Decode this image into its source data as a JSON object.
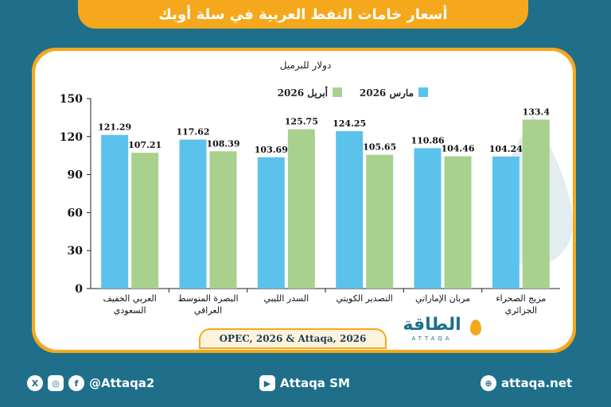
{
  "header": {
    "title": "أسعار خامات النفط العربية في سلة أوبك"
  },
  "chart_data": {
    "type": "bar",
    "unit_label": "دولار للبرميل",
    "ylim": [
      0,
      150
    ],
    "yticks": [
      0,
      30,
      60,
      90,
      120,
      150
    ],
    "categories": [
      [
        "العربي الخفيف",
        "السعودي"
      ],
      [
        "البصرة المتوسط",
        "العراقي"
      ],
      [
        "السدر الليبي"
      ],
      [
        "التصدير الكويتي"
      ],
      [
        "مربان الإماراتي"
      ],
      [
        "مزيج الصحراء",
        "الجزائري"
      ]
    ],
    "series": [
      {
        "name": "مارس 2026",
        "color": "#5bc2ec",
        "values": [
          121.29,
          117.62,
          103.69,
          124.25,
          110.86,
          104.24
        ]
      },
      {
        "name": "أبريل 2026",
        "color": "#a8d18d",
        "values": [
          107.21,
          108.39,
          125.75,
          105.65,
          104.46,
          133.4
        ]
      }
    ],
    "legend_position": "top"
  },
  "source": "OPEC, 2026 & Attaqa, 2026",
  "logo": {
    "text": "الطاقة",
    "sub": "ATTAQA"
  },
  "footer": {
    "social_icons": [
      "x-icon",
      "instagram-icon",
      "facebook-icon"
    ],
    "social_handle": "@Attaqa2",
    "youtube": "Attaqa SM",
    "website": "attaqa.net"
  }
}
